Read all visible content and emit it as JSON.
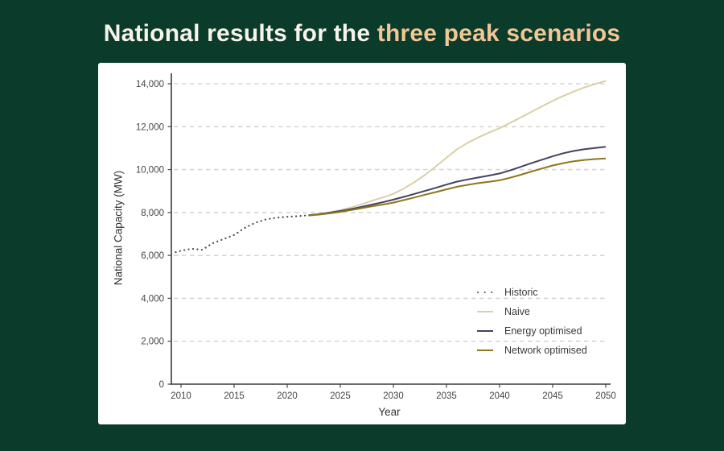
{
  "title": {
    "prefix": "National results for the",
    "highlight": "three peak scenarios"
  },
  "colors": {
    "background": "#0b3b2b",
    "panel": "#ffffff",
    "title_prefix": "#f8f4ea",
    "title_highlight": "#f3c795",
    "axis": "#3a3a3a",
    "tick_text": "#444444",
    "gridline": "#d6d6d6"
  },
  "chart_data": {
    "type": "line",
    "title": "",
    "xlabel": "Year",
    "ylabel": "National Capacity (MW)",
    "xlim": [
      2009,
      2050
    ],
    "ylim": [
      0,
      14000
    ],
    "x_ticks": [
      2010,
      2015,
      2020,
      2025,
      2030,
      2035,
      2040,
      2045,
      2050
    ],
    "y_ticks": [
      0,
      2000,
      4000,
      6000,
      8000,
      10000,
      12000,
      14000
    ],
    "y_tick_labels": [
      "0",
      "2,000",
      "4,000",
      "6,000",
      "8,000",
      "10,000",
      "12,000",
      "14,000"
    ],
    "grid": "horizontal dashed",
    "legend_position": "inside lower right",
    "series": [
      {
        "name": "Historic",
        "style": "dotted",
        "color": "#4d4d4d",
        "x": [
          2009.5,
          2010,
          2011,
          2012,
          2013,
          2014,
          2015,
          2016,
          2017,
          2018,
          2019,
          2020,
          2021,
          2022
        ],
        "y": [
          6150,
          6220,
          6310,
          6260,
          6570,
          6760,
          6950,
          7280,
          7520,
          7680,
          7760,
          7800,
          7830,
          7870
        ]
      },
      {
        "name": "Naive",
        "style": "solid",
        "color": "#d9d0a7",
        "x": [
          2022,
          2023,
          2024,
          2025,
          2026,
          2027,
          2028,
          2029,
          2030,
          2031,
          2032,
          2033,
          2034,
          2035,
          2036,
          2037,
          2038,
          2039,
          2040,
          2041,
          2042,
          2043,
          2044,
          2045,
          2046,
          2047,
          2048,
          2049,
          2050
        ],
        "y": [
          7870,
          7930,
          8010,
          8110,
          8230,
          8380,
          8550,
          8700,
          8870,
          9120,
          9420,
          9760,
          10150,
          10550,
          10950,
          11250,
          11500,
          11720,
          11930,
          12180,
          12430,
          12690,
          12950,
          13200,
          13430,
          13640,
          13830,
          13990,
          14130
        ]
      },
      {
        "name": "Energy optimised",
        "style": "solid",
        "color": "#454260",
        "x": [
          2022,
          2023,
          2024,
          2025,
          2026,
          2027,
          2028,
          2029,
          2030,
          2031,
          2032,
          2033,
          2034,
          2035,
          2036,
          2037,
          2038,
          2039,
          2040,
          2041,
          2042,
          2043,
          2044,
          2045,
          2046,
          2047,
          2048,
          2049,
          2050
        ],
        "y": [
          7870,
          7920,
          7990,
          8070,
          8160,
          8260,
          8370,
          8480,
          8600,
          8730,
          8870,
          9010,
          9150,
          9300,
          9440,
          9540,
          9630,
          9720,
          9820,
          9960,
          10130,
          10300,
          10460,
          10620,
          10760,
          10870,
          10950,
          11010,
          11060
        ]
      },
      {
        "name": "Network optimised",
        "style": "solid",
        "color": "#8e761d",
        "x": [
          2022,
          2023,
          2024,
          2025,
          2026,
          2027,
          2028,
          2029,
          2030,
          2031,
          2032,
          2033,
          2034,
          2035,
          2036,
          2037,
          2038,
          2039,
          2040,
          2041,
          2042,
          2043,
          2044,
          2045,
          2046,
          2047,
          2048,
          2049,
          2050
        ],
        "y": [
          7860,
          7900,
          7960,
          8030,
          8110,
          8200,
          8290,
          8370,
          8460,
          8580,
          8700,
          8830,
          8950,
          9080,
          9200,
          9290,
          9370,
          9430,
          9500,
          9620,
          9760,
          9910,
          10050,
          10190,
          10300,
          10390,
          10450,
          10490,
          10520
        ]
      }
    ]
  }
}
